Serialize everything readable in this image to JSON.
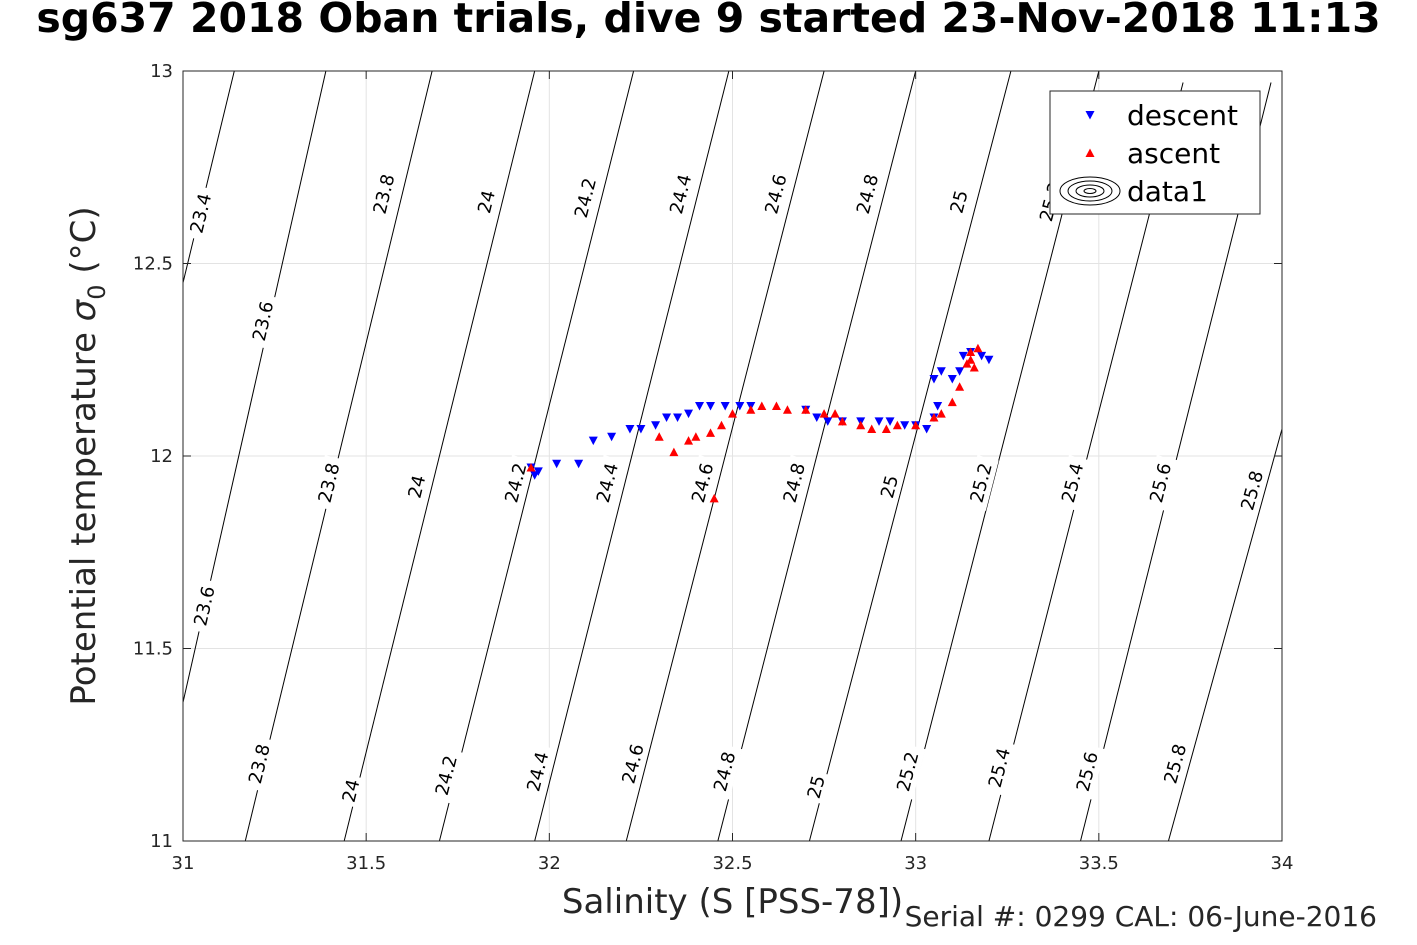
{
  "chart_data": {
    "type": "scatter",
    "title": "sg637 2018 Oban trials, dive 9 started 23-Nov-2018 11:13",
    "xlabel": "Salinity (S [PSS-78])",
    "ylabel_main": "Potential temperature",
    "ylabel_sym": "σ",
    "ylabel_sub": "0",
    "ylabel_unit": "(°C)",
    "footer": "Serial #: 0299 CAL: 06-June-2016",
    "xlim": [
      31,
      34
    ],
    "ylim": [
      11,
      13
    ],
    "xticks": [
      31,
      31.5,
      32,
      32.5,
      33,
      33.5,
      34
    ],
    "xticklabels": [
      "31",
      "31.5",
      "32",
      "32.5",
      "33",
      "33.5",
      "34"
    ],
    "yticks": [
      11,
      11.5,
      12,
      12.5,
      13
    ],
    "yticklabels": [
      "11",
      "11.5",
      "12",
      "12.5",
      "13"
    ],
    "grid": true,
    "legend_position": "top-right",
    "legend": [
      "descent",
      "ascent",
      "data1"
    ],
    "series_colors": {
      "descent": "#0000ff",
      "ascent": "#ff0000"
    },
    "contours": [
      {
        "level": "23.4",
        "points": [
          [
            31.0,
            12.45
          ],
          [
            31.14,
            13.0
          ]
        ],
        "labels": [
          [
            31.05,
            12.63
          ]
        ]
      },
      {
        "level": "23.6",
        "points": [
          [
            31.0,
            11.36
          ],
          [
            31.39,
            13.0
          ]
        ],
        "labels": [
          [
            31.22,
            12.35
          ],
          [
            31.06,
            11.61
          ]
        ]
      },
      {
        "level": "23.8",
        "points": [
          [
            31.17,
            11.0
          ],
          [
            31.68,
            13.0
          ]
        ],
        "labels": [
          [
            31.55,
            12.68
          ],
          [
            31.4,
            11.93
          ],
          [
            31.21,
            11.2
          ]
        ]
      },
      {
        "level": "24",
        "points": [
          [
            31.44,
            11.0
          ],
          [
            31.96,
            13.0
          ]
        ],
        "labels": [
          [
            31.83,
            12.66
          ],
          [
            31.64,
            11.92
          ],
          [
            31.46,
            11.13
          ]
        ]
      },
      {
        "level": "24.2",
        "points": [
          [
            31.7,
            11.0
          ],
          [
            32.23,
            13.0
          ]
        ],
        "labels": [
          [
            32.1,
            12.67
          ],
          [
            31.91,
            11.93
          ],
          [
            31.72,
            11.17
          ]
        ]
      },
      {
        "level": "24.4",
        "points": [
          [
            31.96,
            11.0
          ],
          [
            32.49,
            13.0
          ]
        ],
        "labels": [
          [
            32.36,
            12.68
          ],
          [
            32.16,
            11.93
          ],
          [
            31.97,
            11.18
          ]
        ]
      },
      {
        "level": "24.6",
        "points": [
          [
            32.21,
            11.0
          ],
          [
            32.75,
            13.0
          ]
        ],
        "labels": [
          [
            32.62,
            12.68
          ],
          [
            32.42,
            11.93
          ],
          [
            32.23,
            11.2
          ]
        ]
      },
      {
        "level": "24.8",
        "points": [
          [
            32.46,
            11.0
          ],
          [
            33.0,
            13.0
          ]
        ],
        "labels": [
          [
            32.87,
            12.68
          ],
          [
            32.67,
            11.93
          ],
          [
            32.48,
            11.18
          ]
        ]
      },
      {
        "level": "25",
        "points": [
          [
            32.71,
            11.0
          ],
          [
            33.26,
            13.0
          ]
        ],
        "labels": [
          [
            33.12,
            12.66
          ],
          [
            32.93,
            11.92
          ],
          [
            32.73,
            11.14
          ]
        ]
      },
      {
        "level": "25.2",
        "points": [
          [
            32.96,
            11.0
          ],
          [
            33.5,
            13.0
          ]
        ],
        "labels": [
          [
            33.37,
            12.66
          ],
          [
            33.18,
            11.93
          ],
          [
            32.98,
            11.18
          ]
        ]
      },
      {
        "level": "25.4",
        "points": [
          [
            33.2,
            11.0
          ],
          [
            33.73,
            12.97
          ]
        ],
        "labels": [
          [
            33.43,
            11.93
          ],
          [
            33.23,
            11.19
          ]
        ]
      },
      {
        "level": "25.6",
        "points": [
          [
            33.45,
            11.0
          ],
          [
            33.97,
            12.97
          ]
        ],
        "labels": [
          [
            33.67,
            11.93
          ],
          [
            33.47,
            11.18
          ]
        ]
      },
      {
        "level": "25.8",
        "points": [
          [
            33.69,
            11.0
          ],
          [
            34.0,
            12.07
          ]
        ],
        "labels": [
          [
            33.92,
            11.91
          ],
          [
            33.71,
            11.2
          ]
        ]
      }
    ],
    "series": [
      {
        "name": "descent",
        "points": [
          [
            31.96,
            11.95
          ],
          [
            31.97,
            11.96
          ],
          [
            31.95,
            11.97
          ],
          [
            32.02,
            11.98
          ],
          [
            32.08,
            11.98
          ],
          [
            32.12,
            12.04
          ],
          [
            32.17,
            12.05
          ],
          [
            32.22,
            12.07
          ],
          [
            32.25,
            12.07
          ],
          [
            32.29,
            12.08
          ],
          [
            32.32,
            12.1
          ],
          [
            32.35,
            12.1
          ],
          [
            32.38,
            12.11
          ],
          [
            32.41,
            12.13
          ],
          [
            32.44,
            12.13
          ],
          [
            32.48,
            12.13
          ],
          [
            32.52,
            12.13
          ],
          [
            32.55,
            12.13
          ],
          [
            32.7,
            12.12
          ],
          [
            32.73,
            12.1
          ],
          [
            32.76,
            12.09
          ],
          [
            32.8,
            12.09
          ],
          [
            32.85,
            12.09
          ],
          [
            32.9,
            12.09
          ],
          [
            32.93,
            12.09
          ],
          [
            32.97,
            12.08
          ],
          [
            33.0,
            12.08
          ],
          [
            33.03,
            12.07
          ],
          [
            33.05,
            12.1
          ],
          [
            33.06,
            12.13
          ],
          [
            33.05,
            12.2
          ],
          [
            33.07,
            12.22
          ],
          [
            33.1,
            12.2
          ],
          [
            33.12,
            12.22
          ],
          [
            33.13,
            12.26
          ],
          [
            33.15,
            12.27
          ],
          [
            33.18,
            12.26
          ],
          [
            33.2,
            12.25
          ]
        ]
      },
      {
        "name": "ascent",
        "points": [
          [
            32.45,
            11.89
          ],
          [
            32.34,
            12.01
          ],
          [
            32.38,
            12.04
          ],
          [
            32.4,
            12.05
          ],
          [
            32.44,
            12.06
          ],
          [
            32.47,
            12.08
          ],
          [
            32.5,
            12.11
          ],
          [
            32.55,
            12.12
          ],
          [
            32.58,
            12.13
          ],
          [
            32.62,
            12.13
          ],
          [
            32.65,
            12.12
          ],
          [
            32.7,
            12.12
          ],
          [
            32.75,
            12.11
          ],
          [
            32.78,
            12.11
          ],
          [
            32.8,
            12.09
          ],
          [
            32.85,
            12.08
          ],
          [
            32.88,
            12.07
          ],
          [
            32.92,
            12.07
          ],
          [
            32.95,
            12.08
          ],
          [
            33.0,
            12.08
          ],
          [
            33.05,
            12.1
          ],
          [
            33.07,
            12.11
          ],
          [
            33.1,
            12.14
          ],
          [
            33.12,
            12.18
          ],
          [
            33.14,
            12.24
          ],
          [
            33.15,
            12.27
          ],
          [
            33.17,
            12.28
          ],
          [
            33.15,
            12.25
          ],
          [
            33.16,
            12.23
          ],
          [
            31.95,
            11.97
          ],
          [
            32.3,
            12.05
          ]
        ]
      }
    ]
  }
}
